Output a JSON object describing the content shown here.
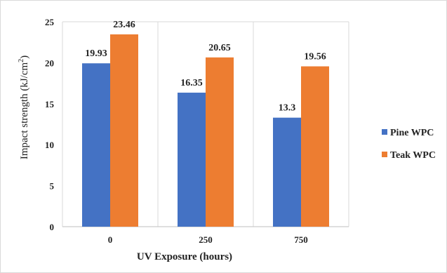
{
  "chart_data": {
    "type": "bar",
    "categories": [
      "0",
      "250",
      "750"
    ],
    "series": [
      {
        "name": "Pine WPC",
        "values": [
          19.93,
          16.35,
          13.3
        ],
        "labels": [
          "19.93",
          "16.35",
          "13.3"
        ],
        "color": "#4472C4"
      },
      {
        "name": "Teak WPC",
        "values": [
          23.46,
          20.65,
          19.56
        ],
        "labels": [
          "23.46",
          "20.65",
          "19.56"
        ],
        "color": "#ED7D31"
      }
    ],
    "xlabel": "UV Exposure (hours)",
    "ylabel_main": "Impact strength (kJ/cm",
    "ylabel_sup": "2",
    "ylabel_close": ")",
    "ylim": [
      0,
      25
    ],
    "yticks": [
      "0",
      "5",
      "10",
      "15",
      "20",
      "25"
    ],
    "grid": {
      "horizontal": false,
      "vertical": true
    },
    "legend_position": "right"
  }
}
